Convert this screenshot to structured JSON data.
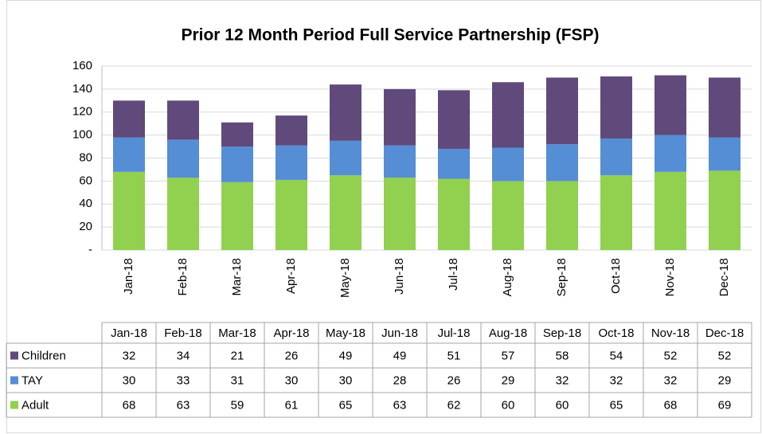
{
  "chart_data": {
    "type": "stacked_bar",
    "title": "Prior 12 Month Period Full Service Partnership (FSP)",
    "categories": [
      "Jan-18",
      "Feb-18",
      "Mar-18",
      "Apr-18",
      "May-18",
      "Jun-18",
      "Jul-18",
      "Aug-18",
      "Sep-18",
      "Oct-18",
      "Nov-18",
      "Dec-18"
    ],
    "series": [
      {
        "name": "Children",
        "color": "#604a7b",
        "values": [
          32,
          34,
          21,
          26,
          49,
          49,
          51,
          57,
          58,
          54,
          52,
          52
        ]
      },
      {
        "name": "TAY",
        "color": "#558ed5",
        "values": [
          30,
          33,
          31,
          30,
          30,
          28,
          26,
          29,
          32,
          32,
          32,
          29
        ]
      },
      {
        "name": "Adult",
        "color": "#92d050",
        "values": [
          68,
          63,
          59,
          61,
          65,
          63,
          62,
          60,
          60,
          65,
          68,
          69
        ]
      }
    ],
    "ylim": [
      0,
      160
    ],
    "yticks": [
      {
        "value": 0,
        "label": "-"
      },
      20,
      40,
      60,
      80,
      100,
      120,
      140,
      160
    ],
    "grid": true
  }
}
